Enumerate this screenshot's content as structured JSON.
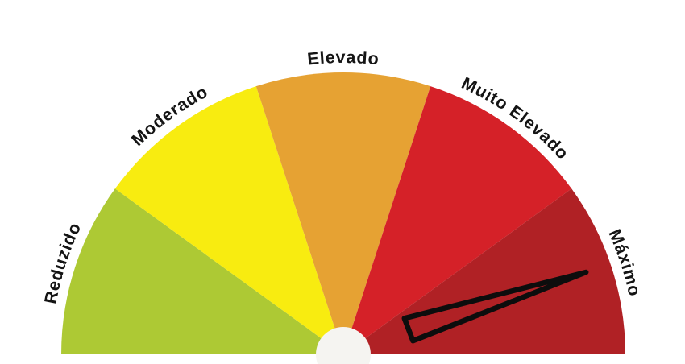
{
  "page": {
    "background_color": "#ffffff"
  },
  "chart_data": {
    "type": "gauge",
    "subtype": "semicircular-risk-dial",
    "title": "",
    "categories": [
      "Reduzido",
      "Moderado",
      "Elevado",
      "Muito Elevado",
      "Máximo"
    ],
    "segments": [
      {
        "label": "Reduzido",
        "color": "#adc934",
        "start_deg": 180,
        "end_deg": 144
      },
      {
        "label": "Moderado",
        "color": "#f8ec10",
        "start_deg": 144,
        "end_deg": 108
      },
      {
        "label": "Elevado",
        "color": "#e6a233",
        "start_deg": 108,
        "end_deg": 72
      },
      {
        "label": "Muito Elevado",
        "color": "#d52128",
        "start_deg": 72,
        "end_deg": 36
      },
      {
        "label": "Máximo",
        "color": "#b02125",
        "start_deg": 36,
        "end_deg": 0
      }
    ],
    "needle": {
      "points_to": "Máximo",
      "angle_deg": 18.7,
      "color": "#0d0d0d",
      "stroke_width": 6.5,
      "fill": "none",
      "points_polar": [
        {
          "angle_deg": 18.7,
          "radius": 318
        },
        {
          "angle_deg": 30.5,
          "radius": 88
        },
        {
          "angle_deg": 11.0,
          "radius": 88
        }
      ]
    },
    "label_color": "#141414",
    "hub_color": "#f5f4f1",
    "legend_position": "labels-around-arc",
    "value_axis": "none",
    "grid": false
  }
}
